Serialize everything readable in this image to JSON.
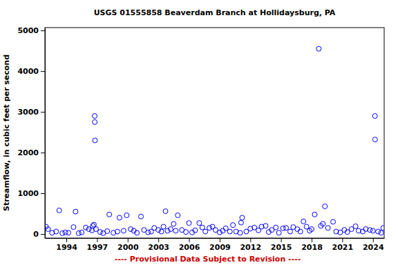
{
  "chart_data": {
    "type": "scatter",
    "title": "USGS 01555858 Beaverdam Branch at Hollidaysburg, PA",
    "ylabel": "Streamflow, in cubic feet per second",
    "annotation": "---- Provisional Data Subject to Revision ----",
    "marker": "circle",
    "color": "#0000ff",
    "grid": false,
    "x": [
      1992.0,
      1992.2,
      1992.6,
      1993.0,
      1993.3,
      1993.6,
      1993.9,
      1994.2,
      1994.7,
      1994.9,
      1995.2,
      1995.5,
      1995.9,
      1996.2,
      1996.5,
      1996.6,
      1996.7,
      1996.77,
      1996.78,
      1996.8,
      1996.9,
      1997.3,
      1997.6,
      1998.0,
      1998.2,
      1998.6,
      1999.0,
      1999.2,
      1999.6,
      1999.9,
      2000.3,
      2000.6,
      2000.9,
      2001.3,
      2001.6,
      2002.0,
      2002.3,
      2002.6,
      2003.0,
      2003.3,
      2003.5,
      2003.7,
      2003.9,
      2004.2,
      2004.5,
      2004.7,
      2004.9,
      2005.3,
      2005.7,
      2006.0,
      2006.3,
      2006.6,
      2007.0,
      2007.3,
      2007.6,
      2008.0,
      2008.3,
      2008.6,
      2009.0,
      2009.3,
      2009.6,
      2010.0,
      2010.3,
      2010.6,
      2011.0,
      2011.1,
      2011.2,
      2011.6,
      2012.0,
      2012.4,
      2012.8,
      2013.1,
      2013.5,
      2013.8,
      2014.1,
      2014.5,
      2014.8,
      2015.2,
      2015.5,
      2015.9,
      2016.2,
      2016.6,
      2016.9,
      2017.2,
      2017.5,
      2017.8,
      2018.0,
      2018.3,
      2018.7,
      2018.9,
      2019.1,
      2019.3,
      2019.6,
      2020.1,
      2020.4,
      2020.8,
      2021.2,
      2021.5,
      2021.9,
      2022.3,
      2022.6,
      2023.0,
      2023.3,
      2023.7,
      2024.0,
      2024.2,
      2024.21,
      2024.5,
      2024.8,
      2025.0
    ],
    "values": [
      180,
      120,
      30,
      60,
      580,
      20,
      40,
      30,
      170,
      550,
      20,
      40,
      160,
      120,
      90,
      200,
      230,
      2900,
      2750,
      2300,
      120,
      50,
      20,
      70,
      480,
      30,
      60,
      400,
      80,
      460,
      120,
      80,
      30,
      430,
      100,
      40,
      60,
      150,
      100,
      60,
      180,
      560,
      80,
      120,
      250,
      80,
      460,
      100,
      50,
      270,
      40,
      90,
      270,
      160,
      60,
      150,
      180,
      100,
      40,
      80,
      140,
      60,
      220,
      60,
      30,
      280,
      400,
      60,
      130,
      160,
      90,
      180,
      200,
      50,
      100,
      160,
      30,
      140,
      150,
      60,
      170,
      120,
      60,
      310,
      180,
      80,
      120,
      480,
      4550,
      200,
      250,
      680,
      150,
      300,
      60,
      40,
      100,
      50,
      120,
      190,
      80,
      60,
      120,
      100,
      80,
      2900,
      2320,
      60,
      30,
      150
    ],
    "xlim": [
      1991.9,
      2025.1
    ],
    "xticks": [
      1994,
      1997,
      2000,
      2003,
      2006,
      2009,
      2012,
      2015,
      2018,
      2021,
      2024
    ],
    "ylim": [
      -100,
      5070
    ],
    "yticks": [
      0,
      1000,
      2000,
      3000,
      4000,
      5000
    ]
  }
}
